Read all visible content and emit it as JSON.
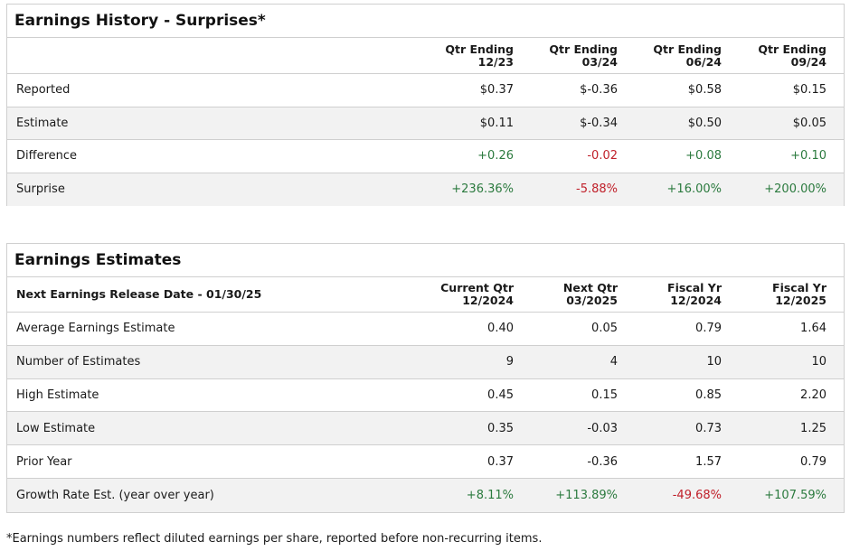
{
  "history": {
    "title": "Earnings History - Surprises*",
    "columns": [
      {
        "line1": "Qtr Ending",
        "line2": "12/23"
      },
      {
        "line1": "Qtr Ending",
        "line2": "03/24"
      },
      {
        "line1": "Qtr Ending",
        "line2": "06/24"
      },
      {
        "line1": "Qtr Ending",
        "line2": "09/24"
      }
    ],
    "rows": [
      {
        "label": "Reported",
        "values": [
          "$0.37",
          "$-0.36",
          "$0.58",
          "$0.15"
        ],
        "tones": [
          "",
          "",
          "",
          ""
        ]
      },
      {
        "label": "Estimate",
        "values": [
          "$0.11",
          "$-0.34",
          "$0.50",
          "$0.05"
        ],
        "tones": [
          "",
          "",
          "",
          ""
        ]
      },
      {
        "label": "Difference",
        "values": [
          "+0.26",
          "-0.02",
          "+0.08",
          "+0.10"
        ],
        "tones": [
          "pos",
          "neg",
          "pos",
          "pos"
        ]
      },
      {
        "label": "Surprise",
        "values": [
          "+236.36%",
          "-5.88%",
          "+16.00%",
          "+200.00%"
        ],
        "tones": [
          "pos",
          "neg",
          "pos",
          "pos"
        ]
      }
    ]
  },
  "estimates": {
    "title": "Earnings Estimates",
    "release_label": "Next Earnings Release Date - 01/30/25",
    "columns": [
      {
        "line1": "Current Qtr",
        "line2": "12/2024"
      },
      {
        "line1": "Next Qtr",
        "line2": "03/2025"
      },
      {
        "line1": "Fiscal Yr",
        "line2": "12/2024"
      },
      {
        "line1": "Fiscal Yr",
        "line2": "12/2025"
      }
    ],
    "rows": [
      {
        "label": "Average Earnings Estimate",
        "values": [
          "0.40",
          "0.05",
          "0.79",
          "1.64"
        ],
        "tones": [
          "",
          "",
          "",
          ""
        ]
      },
      {
        "label": "Number of Estimates",
        "values": [
          "9",
          "4",
          "10",
          "10"
        ],
        "tones": [
          "",
          "",
          "",
          ""
        ]
      },
      {
        "label": "High Estimate",
        "values": [
          "0.45",
          "0.15",
          "0.85",
          "2.20"
        ],
        "tones": [
          "",
          "",
          "",
          ""
        ]
      },
      {
        "label": "Low Estimate",
        "values": [
          "0.35",
          "-0.03",
          "0.73",
          "1.25"
        ],
        "tones": [
          "",
          "",
          "",
          ""
        ]
      },
      {
        "label": "Prior Year",
        "values": [
          "0.37",
          "-0.36",
          "1.57",
          "0.79"
        ],
        "tones": [
          "",
          "",
          "",
          ""
        ]
      },
      {
        "label": "Growth Rate Est. (year over year)",
        "values": [
          "+8.11%",
          "+113.89%",
          "-49.68%",
          "+107.59%"
        ],
        "tones": [
          "pos",
          "pos",
          "neg",
          "pos"
        ]
      }
    ]
  },
  "footnote": "*Earnings numbers reflect diluted earnings per share, reported before non-recurring items.",
  "colors": {
    "positive": "#2b7a3e",
    "negative": "#c0202a",
    "stripe": "#f2f2f2",
    "border": "#cfcfcf"
  }
}
